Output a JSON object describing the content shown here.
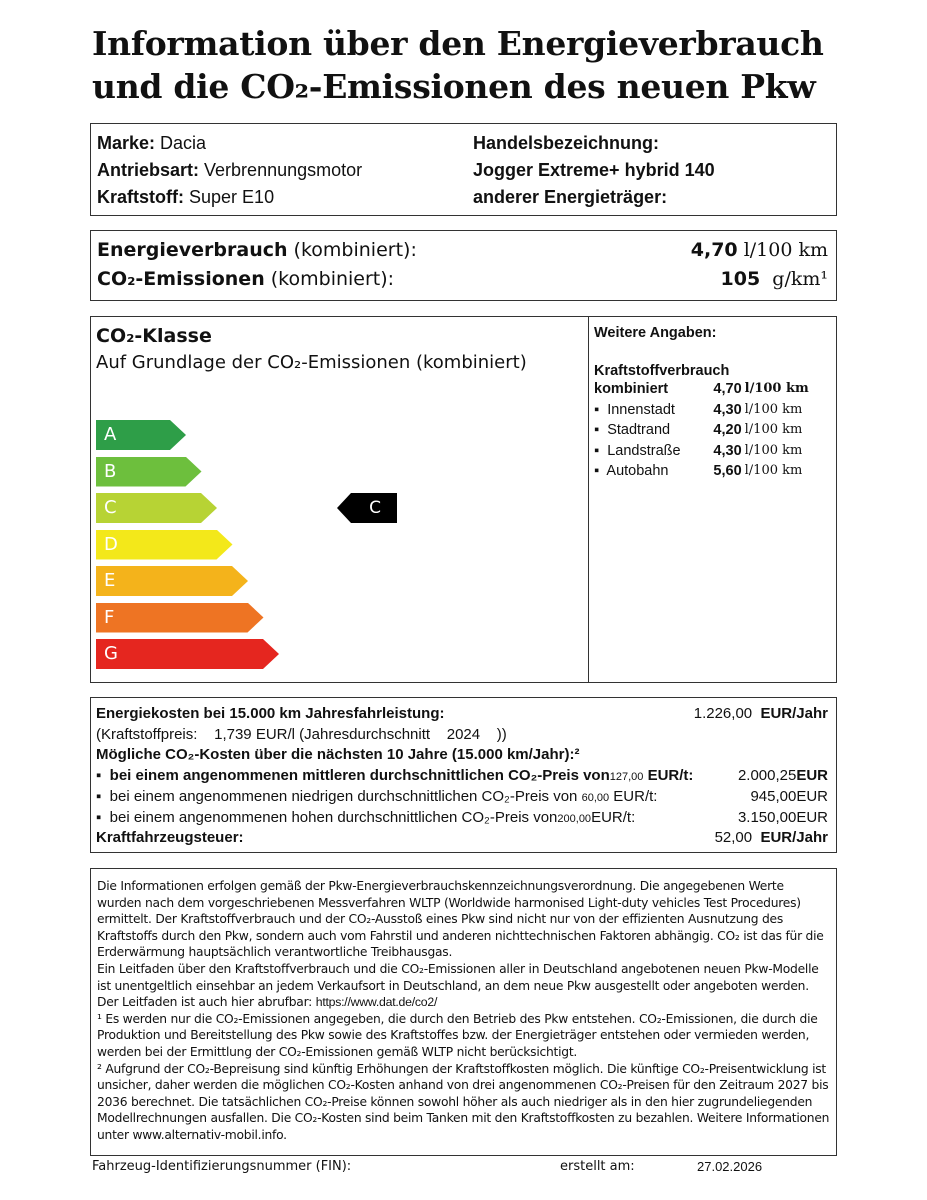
{
  "title": {
    "line1": "Information über den Energieverbrauch",
    "line2": "und die CO₂-Emissionen des neuen Pkw"
  },
  "vehicle": {
    "marke_label": "Marke:",
    "marke": "Dacia",
    "antrieb_label": "Antriebsart:",
    "antrieb": "Verbrennungsmotor",
    "kraftstoff_label": "Kraftstoff:",
    "kraftstoff": "Super E10",
    "handel_label": "Handelsbezeichnung:",
    "handel": "Jogger Extreme+ hybrid 140",
    "energie_label": "anderer Energieträger:"
  },
  "consumption": {
    "energie_label": "Energieverbrauch",
    "energie_suffix": " (kombiniert):",
    "energie_value": "4,70",
    "energie_unit": "l/100 km",
    "co2_label": "CO₂-Emissionen",
    "co2_suffix": " (kombiniert):",
    "co2_value": "105",
    "co2_unit": "g/km¹"
  },
  "co2class": {
    "heading": "CO₂-Klasse",
    "subheading": "Auf Grundlage der CO₂-Emissionen (kombiniert)",
    "classes": [
      "A",
      "B",
      "C",
      "D",
      "E",
      "F",
      "G"
    ],
    "colors": [
      "#2e9e48",
      "#6dbf3d",
      "#b7d334",
      "#f3e81a",
      "#f4b31b",
      "#ee7423",
      "#e5261f"
    ],
    "current": "C"
  },
  "weitere": {
    "heading": "Weitere Angaben:",
    "sub": "Kraftstoffverbrauch",
    "rows": [
      {
        "label": "kombiniert",
        "value": "4,70",
        "unit": "l/100 km",
        "bold": true
      },
      {
        "label": "Innenstadt",
        "value": "4,30",
        "unit": "l/100 km"
      },
      {
        "label": "Stadtrand",
        "value": "4,20",
        "unit": "l/100 km"
      },
      {
        "label": "Landstraße",
        "value": "4,30",
        "unit": "l/100 km"
      },
      {
        "label": "Autobahn",
        "value": "5,60",
        "unit": "l/100 km"
      }
    ]
  },
  "costs": {
    "energie_label": "Energiekosten bei 15.000 km Jahresfahrleistung:",
    "energie_value": "1.226,00",
    "energie_unit": "EUR/Jahr",
    "preis_prefix": "(Kraftstoffpreis:",
    "preis_value": "1,739",
    "preis_mid": "EUR/l (Jahresdurchschnitt",
    "preis_year": "2024",
    "preis_end": "))",
    "co2_heading": "Mögliche CO₂-Kosten über die nächsten 10 Jahre (15.000 km/Jahr):²",
    "mid_text": "bei einem angenommenen mittleren durchschnittlichen CO₂-Preis von",
    "mid_price": "127,00",
    "mid_unit": "EUR/t:",
    "mid_value": "2.000,25",
    "mid_cur": "EUR",
    "low_text": "bei einem angenommenen niedrigen durchschnittlichen CO₂-Preis von",
    "low_price": "60,00",
    "low_unit": "EUR/t:",
    "low_value": "945,00",
    "low_cur": "EUR",
    "high_text": "bei einem angenommenen hohen durchschnittlichen CO₂-Preis von",
    "high_price": "200,00",
    "high_unit": "EUR/t:",
    "high_value": "3.150,00",
    "high_cur": "EUR",
    "steuer_label": "Kraftfahrzeugsteuer:",
    "steuer_value": "52,00",
    "steuer_unit": "EUR/Jahr"
  },
  "notes": {
    "p1": "Die Informationen erfolgen gemäß der Pkw-Energieverbrauchskennzeichnungsverordnung. Die angegebenen Werte wurden nach dem vorgeschriebenen Messverfahren WLTP (Worldwide harmonised Light-duty vehicles Test Procedures) ermittelt. Der Kraftstoffverbrauch und der CO₂-Ausstoß eines Pkw sind nicht nur von der effizienten Ausnutzung des Kraftstoffs durch den Pkw, sondern auch vom Fahrstil und anderen nichttechnischen Faktoren abhängig. CO₂ ist das für die Erderwärmung hauptsächlich verantwortliche Treibhausgas.",
    "p2": "Ein Leitfaden über den Kraftstoffverbrauch und die CO₂-Emissionen aller in Deutschland angebotenen neuen Pkw-Modelle ist unentgeltlich einsehbar an jedem Verkaufsort in Deutschland, an dem neue Pkw ausgestellt oder angeboten werden. Der Leitfaden ist auch hier abrufbar:",
    "link": "https://www.dat.de/co2/",
    "fn1": "¹ Es werden nur die CO₂-Emissionen angegeben, die durch den Betrieb des Pkw entstehen. CO₂-Emissionen, die durch die Produktion und Bereitstellung des Pkw sowie des Kraftstoffes bzw. der Energieträger entstehen oder vermieden werden, werden bei der Ermittlung der CO₂-Emissionen gemäß WLTP nicht berücksichtigt.",
    "fn2a": "² Aufgrund der CO₂-Bepreisung sind künftig Erhöhungen der Kraftstoffkosten möglich. Die künftige CO₂-Preisentwicklung ist unsicher, daher werden die möglichen CO₂-Kosten anhand von drei angenommenen CO₂-Preisen für den Zeitraum",
    "year_from": "2027",
    "bis": "bis",
    "year_to": "2036",
    "fn2b": "berechnet. Die tatsächlichen CO₂-Preise können sowohl höher als auch niedriger als in den hier zugrundeliegenden Modellrechnungen ausfallen. Die CO₂-Kosten sind beim Tanken mit den Kraftstoffkosten zu bezahlen. Weitere Informationen unter www.alternativ-mobil.info."
  },
  "footer": {
    "fin_label": "Fahrzeug-Identifizierungsnummer (FIN):",
    "erstellt_label": "erstellt am:",
    "date": "27.02.2026"
  }
}
